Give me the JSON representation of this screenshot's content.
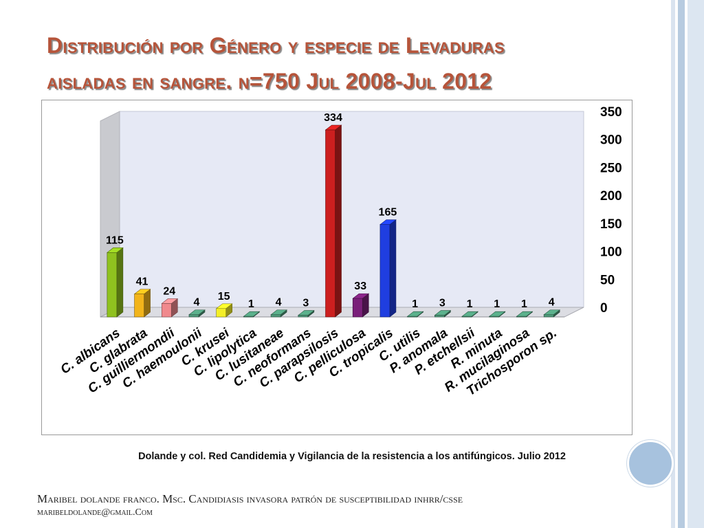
{
  "slide": {
    "title_line1": "Distribución por Género y especie  de Levaduras",
    "title_line2": "aisladas en sangre. n=750 Jul 2008-Jul 2012",
    "citation": "Dolande  y col. Red Candidemia  y Vigilancia de la resistencia a los antifúngicos. Julio 2012",
    "footer_line1": "Maribel dolande franco. Msc. Candidiasis invasora patrón de susceptibilidad inhrr/csse",
    "footer_line2": "maribeldolande@gmail.Com"
  },
  "colors": {
    "title": "#b6543a",
    "accent_circle": "#a7c2de",
    "stripes": [
      "#d9e3ef",
      "#b7cbe0",
      "#dce6f1"
    ]
  },
  "chart_data": {
    "type": "bar",
    "title": "",
    "xlabel": "",
    "ylabel": "",
    "ylim": [
      0,
      350
    ],
    "yticks": [
      0,
      50,
      100,
      150,
      200,
      250,
      300,
      350
    ],
    "y_axis_side": "right",
    "grid": false,
    "categories": [
      "C. albicans",
      "C. glabrata",
      "C. guilliermondii",
      "C. haemoulonii",
      "C. krusei",
      "C. lipolytica",
      "C. lusitaneae",
      "C. neoformans",
      "C. parapsilosis",
      "C. pelliculosa",
      "C. tropicalis",
      "C. utilis",
      "P. anomala",
      "P. etchellsii",
      "R. minuta",
      "R. mucilaginosa",
      "Trichosporon sp."
    ],
    "values": [
      115,
      41,
      24,
      4,
      15,
      1,
      4,
      3,
      334,
      33,
      165,
      1,
      3,
      1,
      1,
      1,
      4
    ],
    "bar_colors": [
      "#8fc21f",
      "#f2b41b",
      "#f0898d",
      "#4f9a7a",
      "#f4ef26",
      "#4f9a7a",
      "#4f9a7a",
      "#4f9a7a",
      "#cc1f1f",
      "#7a1f7a",
      "#1f3ee0",
      "#4f9a7a",
      "#4f9a7a",
      "#4f9a7a",
      "#4f9a7a",
      "#4f9a7a",
      "#4f9a7a"
    ]
  }
}
